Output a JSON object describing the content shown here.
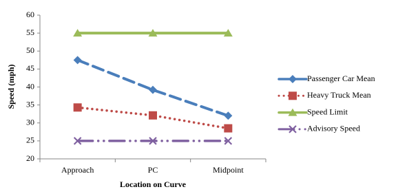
{
  "chart_data": {
    "type": "line",
    "categories": [
      "Approach",
      "PC",
      "Midpoint"
    ],
    "x_label": "Location on Curve",
    "y_label": "Speed (mph)",
    "ylim": [
      20,
      60
    ],
    "yticks": [
      20,
      25,
      30,
      35,
      40,
      45,
      50,
      55,
      60
    ],
    "grid": false,
    "legend": "right",
    "series": [
      {
        "name": "Passenger Car Mean",
        "color": "#4a7ebb",
        "line_style": "dashed",
        "marker": "diamond",
        "values": [
          47.5,
          39.2,
          32
        ]
      },
      {
        "name": "Heavy Truck Mean",
        "color": "#be4b48",
        "line_style": "dotted",
        "marker": "square",
        "values": [
          34.3,
          32.1,
          28.5
        ]
      },
      {
        "name": "Speed Limit",
        "color": "#9bbb59",
        "line_style": "solid",
        "marker": "triangle",
        "values": [
          55,
          55,
          55
        ]
      },
      {
        "name": "Advisory Speed",
        "color": "#7f60a0",
        "line_style": "dashdot",
        "marker": "x",
        "values": [
          25,
          25,
          25
        ]
      }
    ]
  }
}
